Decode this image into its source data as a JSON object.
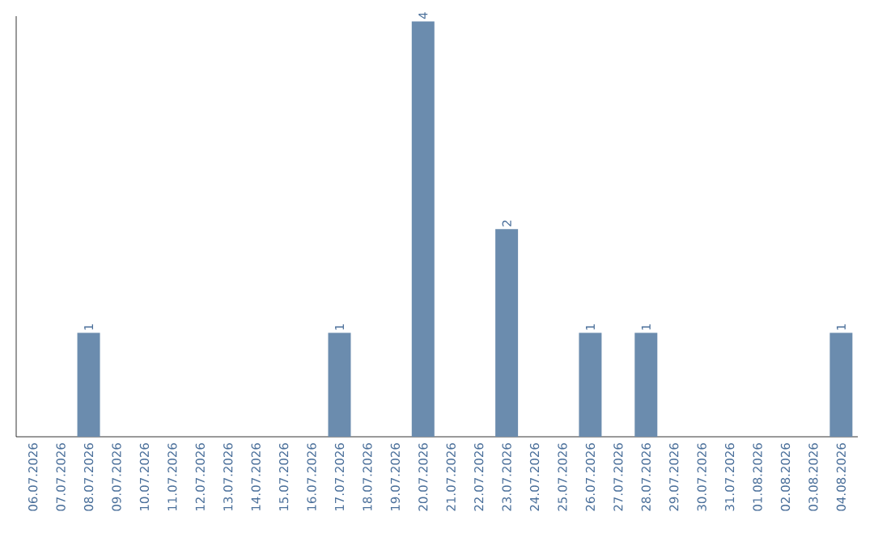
{
  "chart_data": {
    "type": "bar",
    "categories": [
      "06.07.2026",
      "07.07.2026",
      "08.07.2026",
      "09.07.2026",
      "10.07.2026",
      "11.07.2026",
      "12.07.2026",
      "13.07.2026",
      "14.07.2026",
      "15.07.2026",
      "16.07.2026",
      "17.07.2026",
      "18.07.2026",
      "19.07.2026",
      "20.07.2026",
      "21.07.2026",
      "22.07.2026",
      "23.07.2026",
      "24.07.2026",
      "25.07.2026",
      "26.07.2026",
      "27.07.2026",
      "28.07.2026",
      "29.07.2026",
      "30.07.2026",
      "31.07.2026",
      "01.08.2026",
      "02.08.2026",
      "03.08.2026",
      "04.08.2026"
    ],
    "values": [
      0,
      0,
      1,
      0,
      0,
      0,
      0,
      0,
      0,
      0,
      0,
      1,
      0,
      0,
      4,
      0,
      0,
      2,
      0,
      0,
      1,
      0,
      1,
      0,
      0,
      0,
      0,
      0,
      0,
      1
    ],
    "value_labels": [
      null,
      null,
      "1",
      null,
      null,
      null,
      null,
      null,
      null,
      null,
      null,
      "1",
      null,
      null,
      "4",
      null,
      null,
      "2",
      null,
      null,
      "1",
      null,
      "1",
      null,
      null,
      null,
      null,
      null,
      null,
      "1"
    ],
    "color": "#6b8cae",
    "ylim": [
      0,
      4.05
    ]
  }
}
